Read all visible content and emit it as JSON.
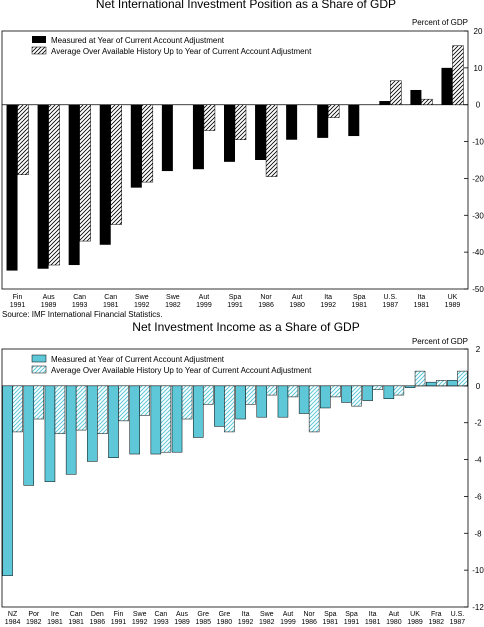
{
  "chart_data": [
    {
      "type": "bar",
      "title": "Net International Investment Position as a Share of GDP",
      "ylabel": "Percent of GDP",
      "ylim": [
        -50,
        20
      ],
      "yticks": [
        -50,
        -40,
        -30,
        -20,
        -10,
        0,
        10,
        20
      ],
      "grid": false,
      "legend_position": "top-left",
      "categories": [
        [
          "Fin",
          "1991"
        ],
        [
          "Aus",
          "1989"
        ],
        [
          "Can",
          "1993"
        ],
        [
          "Can",
          "1981"
        ],
        [
          "Swe",
          "1992"
        ],
        [
          "Swe",
          "1982"
        ],
        [
          "Aut",
          "1999"
        ],
        [
          "Spa",
          "1991"
        ],
        [
          "Nor",
          "1986"
        ],
        [
          "Aut",
          "1980"
        ],
        [
          "Ita",
          "1992"
        ],
        [
          "Spa",
          "1981"
        ],
        [
          "U.S.",
          "1987"
        ],
        [
          "Ita",
          "1981"
        ],
        [
          "UK",
          "1989"
        ]
      ],
      "series": [
        {
          "name": "Measured at Year of Current Account Adjustment",
          "color": "#000000",
          "pattern": "solid",
          "values": [
            -45,
            -44.5,
            -43.5,
            -38,
            -22.5,
            -18,
            -17.5,
            -15.5,
            -15,
            -9.5,
            -9,
            -8.5,
            1,
            4,
            10
          ]
        },
        {
          "name": "Average Over Available History Up to Year of Current Account Adjustment",
          "color": "#000000",
          "pattern": "hatch",
          "values": [
            -19,
            -43.5,
            -37,
            -32.5,
            -21,
            null,
            -7,
            -9.5,
            -19.5,
            null,
            -3.5,
            null,
            6.5,
            1.5,
            16
          ]
        }
      ],
      "source": "Source:  IMF International Financial Statistics."
    },
    {
      "type": "bar",
      "title": "Net Investment Income as a Share of GDP",
      "ylabel": "Percent of GDP",
      "ylim": [
        -12,
        2
      ],
      "yticks": [
        -12,
        -10,
        -8,
        -6,
        -4,
        -2,
        0,
        2
      ],
      "grid": false,
      "legend_position": "top-left",
      "categories": [
        [
          "NZ",
          "1984"
        ],
        [
          "Por",
          "1982"
        ],
        [
          "Ire",
          "1981"
        ],
        [
          "Can",
          "1981"
        ],
        [
          "Den",
          "1986"
        ],
        [
          "Fin",
          "1991"
        ],
        [
          "Swe",
          "1992"
        ],
        [
          "Can",
          "1993"
        ],
        [
          "Aus",
          "1989"
        ],
        [
          "Gre",
          "1985"
        ],
        [
          "Gre",
          "1980"
        ],
        [
          "Ita",
          "1992"
        ],
        [
          "Swe",
          "1982"
        ],
        [
          "Aut",
          "1999"
        ],
        [
          "Nor",
          "1986"
        ],
        [
          "Spa",
          "1981"
        ],
        [
          "Spa",
          "1991"
        ],
        [
          "Ita",
          "1981"
        ],
        [
          "Aut",
          "1980"
        ],
        [
          "UK",
          "1989"
        ],
        [
          "Fra",
          "1982"
        ],
        [
          "U.S.",
          "1987"
        ]
      ],
      "series": [
        {
          "name": "Measured at Year of Current Account Adjustment",
          "color": "#5ec8d8",
          "pattern": "solid",
          "values": [
            -10.3,
            -5.4,
            -5.2,
            -4.8,
            -4.1,
            -3.9,
            -3.7,
            -3.7,
            -3.6,
            -2.8,
            -2.2,
            -1.8,
            -1.7,
            -1.7,
            -1.5,
            -1.2,
            -0.9,
            -0.8,
            -0.7,
            -0.1,
            0.2,
            0.3
          ]
        },
        {
          "name": "Average Over Available History Up to Year of Current Account Adjustment",
          "color": "#5ec8d8",
          "pattern": "hatch",
          "values": [
            -2.5,
            -1.8,
            -2.6,
            -2.4,
            -2.6,
            -1.9,
            -1.6,
            -3.6,
            -1.8,
            -1.0,
            -2.5,
            -1.0,
            -0.5,
            -0.6,
            -2.5,
            -0.6,
            -1.1,
            -0.2,
            -0.5,
            0.8,
            0.3,
            0.8
          ]
        }
      ]
    }
  ]
}
